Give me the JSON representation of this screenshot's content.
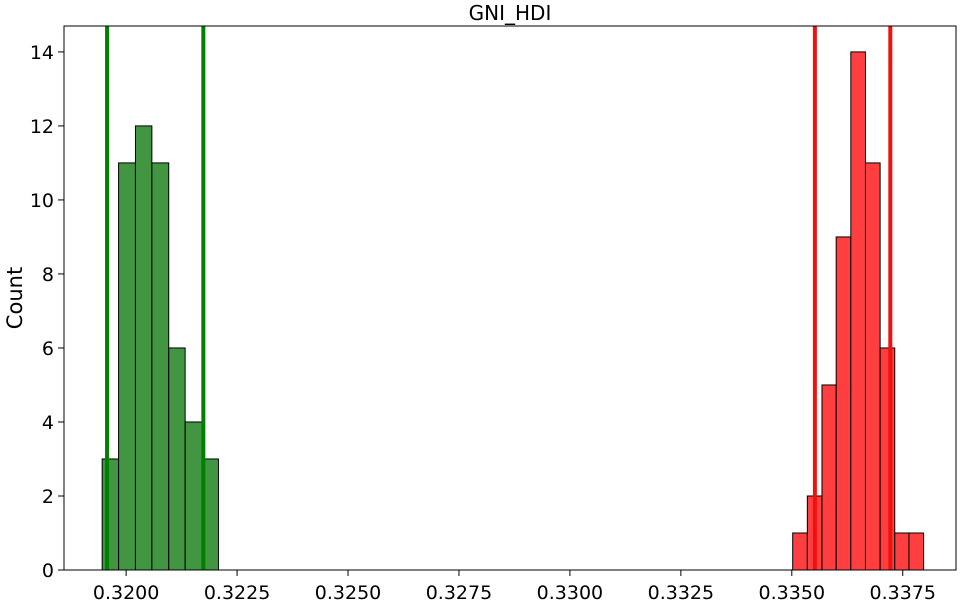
{
  "chart_data": {
    "type": "bar",
    "title": "GNI_HDI",
    "xlabel": "",
    "ylabel": "Count",
    "xlim": [
      0.3186,
      0.3387
    ],
    "ylim": [
      0,
      14.7
    ],
    "x_ticks": [
      0.32,
      0.3225,
      0.325,
      0.3275,
      0.33,
      0.3325,
      0.335,
      0.3375
    ],
    "x_tick_labels": [
      "0.3200",
      "0.3225",
      "0.3250",
      "0.3275",
      "0.3300",
      "0.3325",
      "0.3350",
      "0.3375"
    ],
    "y_ticks": [
      0,
      2,
      4,
      6,
      8,
      10,
      12,
      14
    ],
    "y_tick_labels": [
      "0",
      "2",
      "4",
      "6",
      "8",
      "10",
      "12",
      "14"
    ],
    "grid": false,
    "legend": "none",
    "series": [
      {
        "color": "#2e8b2e",
        "bin_edges": [
          0.31946,
          0.31983,
          0.32021,
          0.32058,
          0.32096,
          0.32133,
          0.32171,
          0.32208
        ],
        "counts": [
          3,
          11,
          12,
          11,
          6,
          4,
          3
        ],
        "interval_lines": [
          0.31957,
          0.32174
        ],
        "line_color": "#008000"
      },
      {
        "color": "#ff2a2a",
        "bin_edges": [
          0.33502,
          0.33535,
          0.33568,
          0.336,
          0.33633,
          0.33666,
          0.33699,
          0.33732,
          0.33764,
          0.33797
        ],
        "counts": [
          1,
          2,
          5,
          9,
          14,
          11,
          6,
          1,
          1
        ],
        "interval_lines": [
          0.33552,
          0.33722
        ],
        "line_color": "#ee1111"
      }
    ]
  }
}
